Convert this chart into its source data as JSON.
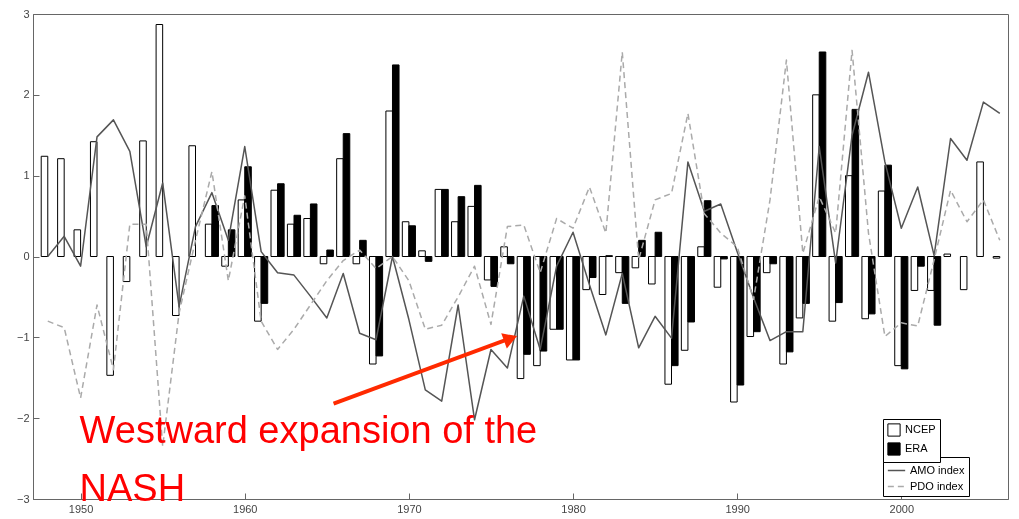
{
  "chart_data": {
    "type": "bar",
    "x": [
      1948,
      1949,
      1950,
      1951,
      1952,
      1953,
      1954,
      1955,
      1956,
      1957,
      1958,
      1959,
      1960,
      1961,
      1962,
      1963,
      1964,
      1965,
      1966,
      1967,
      1968,
      1969,
      1970,
      1971,
      1972,
      1973,
      1974,
      1975,
      1976,
      1977,
      1978,
      1979,
      1980,
      1981,
      1982,
      1983,
      1984,
      1985,
      1986,
      1987,
      1988,
      1989,
      1990,
      1991,
      1992,
      1993,
      1994,
      1995,
      1996,
      1997,
      1998,
      1999,
      2000,
      2001,
      2002,
      2003,
      2004,
      2005,
      2006
    ],
    "series": [
      {
        "name": "NCEP",
        "color": "#ffffff",
        "values": [
          1.24,
          1.21,
          0.33,
          1.42,
          -1.47,
          -0.31,
          1.43,
          2.87,
          -0.73,
          1.37,
          0.4,
          -0.12,
          0.7,
          -0.8,
          0.82,
          0.4,
          0.47,
          -0.09,
          1.21,
          -0.09,
          -1.33,
          1.8,
          0.43,
          0.07,
          0.83,
          0.43,
          0.62,
          -0.29,
          0.12,
          -1.51,
          -1.35,
          -0.9,
          -1.28,
          -0.41,
          -0.47,
          -0.2,
          -0.14,
          -0.34,
          -1.58,
          -1.16,
          0.12,
          -0.38,
          -1.8,
          -0.99,
          -0.2,
          -1.33,
          -0.76,
          2.0,
          -0.8,
          1.0,
          -0.77,
          0.81,
          -1.35,
          -0.42,
          -0.42,
          0.03,
          -0.41,
          1.17,
          -0.02
        ]
      },
      {
        "name": "ERA",
        "color": "#000000",
        "values": [
          null,
          null,
          null,
          null,
          null,
          null,
          null,
          null,
          null,
          null,
          0.63,
          0.33,
          1.11,
          -0.58,
          0.9,
          0.51,
          0.65,
          0.08,
          1.52,
          0.2,
          -1.23,
          2.37,
          0.38,
          -0.06,
          0.83,
          0.74,
          0.88,
          -0.37,
          -0.09,
          -1.21,
          -1.17,
          -0.9,
          -1.28,
          -0.26,
          0.01,
          -0.58,
          0.2,
          0.3,
          -1.35,
          -0.81,
          0.69,
          -0.03,
          -1.59,
          -0.93,
          -0.09,
          -1.18,
          -0.58,
          2.53,
          -0.57,
          1.82,
          -0.71,
          1.13,
          -1.39,
          -0.12,
          -0.85,
          null,
          null,
          null,
          null
        ]
      },
      {
        "name": "AMO index",
        "type": "line",
        "color": "#555555",
        "line_style": "solid",
        "values": [
          0.0,
          0.25,
          -0.12,
          1.48,
          1.69,
          1.3,
          0.12,
          0.91,
          -0.62,
          0.37,
          0.79,
          0.2,
          1.36,
          0.06,
          -0.2,
          -0.23,
          -0.49,
          -0.76,
          -0.21,
          -0.95,
          -1.03,
          0.0,
          -0.78,
          -1.65,
          -1.79,
          -0.6,
          -2.02,
          -1.15,
          -1.38,
          -0.49,
          -1.15,
          -0.12,
          0.3,
          -0.35,
          -0.97,
          -0.21,
          -1.13,
          -0.74,
          -1.01,
          1.17,
          0.56,
          0.65,
          0.06,
          -0.51,
          -1.04,
          -0.93,
          -0.93,
          1.36,
          -0.08,
          1.5,
          2.28,
          1.17,
          0.35,
          0.86,
          0.01,
          1.46,
          1.19,
          1.91,
          1.77
        ]
      },
      {
        "name": "PDO index",
        "type": "line",
        "color": "#aaaaaa",
        "line_style": "dashed",
        "values": [
          -0.8,
          -0.88,
          -1.75,
          -0.6,
          -1.4,
          0.4,
          0.4,
          -2.35,
          -0.7,
          0.2,
          1.05,
          -0.3,
          0.75,
          -0.8,
          -1.15,
          -0.9,
          -0.6,
          -0.3,
          -0.05,
          0.08,
          -0.15,
          0.0,
          -0.3,
          -0.9,
          -0.85,
          -0.5,
          -0.12,
          -0.84,
          0.37,
          0.39,
          -0.2,
          0.47,
          0.35,
          0.86,
          0.29,
          2.53,
          -0.04,
          0.7,
          0.78,
          1.77,
          0.53,
          0.29,
          0.12,
          -0.53,
          0.7,
          2.43,
          0.04,
          0.74,
          0.29,
          2.55,
          0.29,
          -0.99,
          -0.82,
          -0.86,
          -0.04,
          0.82,
          0.43,
          0.7,
          0.2
        ]
      }
    ],
    "xlim": [
      1947.1,
      2006.5
    ],
    "xticks": [
      1950,
      1960,
      1970,
      1980,
      1990,
      2000
    ],
    "ylim": [
      -3,
      3
    ],
    "yticks": [
      -3,
      -2,
      -1,
      0,
      1,
      2,
      3
    ],
    "legend": "bottom right",
    "annotations": [
      {
        "text": "Westward expansion of the NASH",
        "x": 1976.5,
        "y": -0.99
      }
    ]
  }
}
